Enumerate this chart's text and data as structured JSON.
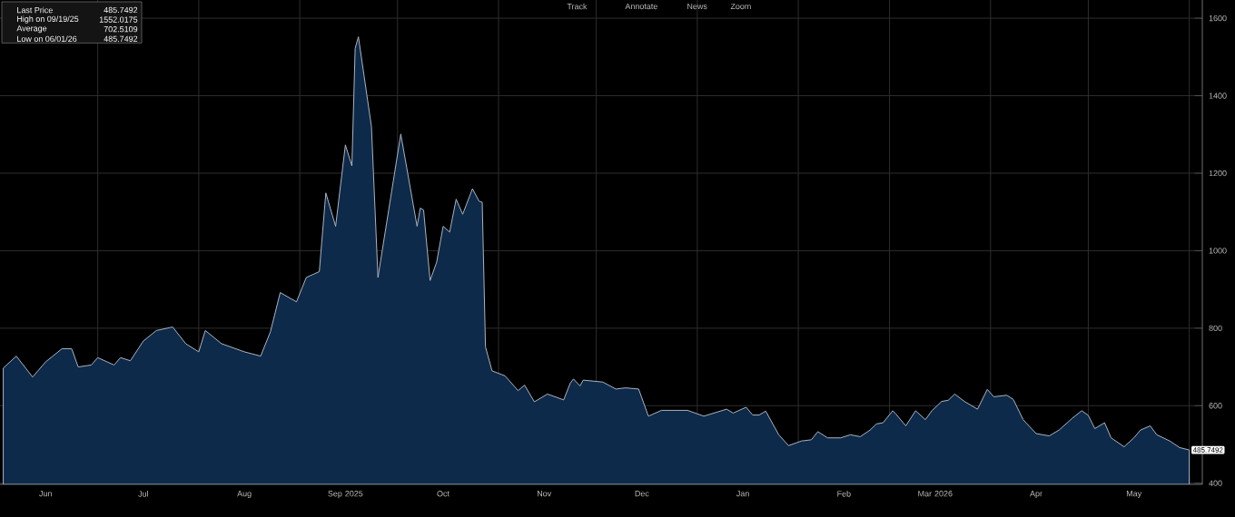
{
  "chart_data": {
    "type": "area",
    "x": [
      "2025-06-02",
      "2025-06-06",
      "2025-06-11",
      "2025-06-15",
      "2025-06-20",
      "2025-06-23",
      "2025-06-25",
      "2025-06-29",
      "2025-07-01",
      "2025-07-06",
      "2025-07-08",
      "2025-07-11",
      "2025-07-15",
      "2025-07-19",
      "2025-07-24",
      "2025-07-28",
      "2025-08-01",
      "2025-08-03",
      "2025-08-08",
      "2025-08-15",
      "2025-08-20",
      "2025-08-23",
      "2025-08-26",
      "2025-08-31",
      "2025-09-03",
      "2025-09-07",
      "2025-09-09",
      "2025-09-12",
      "2025-09-15",
      "2025-09-17",
      "2025-09-18",
      "2025-09-19",
      "2025-09-23",
      "2025-09-25",
      "2025-10-02",
      "2025-10-07",
      "2025-10-08",
      "2025-10-09",
      "2025-10-11",
      "2025-10-13",
      "2025-10-15",
      "2025-10-17",
      "2025-10-19",
      "2025-10-21",
      "2025-10-24",
      "2025-10-26",
      "2025-10-27",
      "2025-10-28",
      "2025-10-30",
      "2025-11-03",
      "2025-11-07",
      "2025-11-09",
      "2025-11-12",
      "2025-11-16",
      "2025-11-21",
      "2025-11-23",
      "2025-11-24",
      "2025-11-26",
      "2025-11-27",
      "2025-12-03",
      "2025-12-07",
      "2025-12-10",
      "2025-12-14",
      "2025-12-17",
      "2025-12-21",
      "2025-12-29",
      "2026-01-03",
      "2026-01-10",
      "2026-01-12",
      "2026-01-16",
      "2026-01-18",
      "2026-01-20",
      "2026-01-22",
      "2026-01-26",
      "2026-01-29",
      "2026-02-02",
      "2026-02-05",
      "2026-02-07",
      "2026-02-10",
      "2026-02-14",
      "2026-02-17",
      "2026-02-20",
      "2026-02-23",
      "2026-02-25",
      "2026-02-27",
      "2026-03-02",
      "2026-03-03",
      "2026-03-06",
      "2026-03-09",
      "2026-03-12",
      "2026-03-14",
      "2026-03-17",
      "2026-03-19",
      "2026-03-21",
      "2026-03-24",
      "2026-03-28",
      "2026-03-31",
      "2026-04-02",
      "2026-04-06",
      "2026-04-08",
      "2026-04-11",
      "2026-04-15",
      "2026-04-19",
      "2026-04-22",
      "2026-04-26",
      "2026-04-29",
      "2026-05-01",
      "2026-05-03",
      "2026-05-06",
      "2026-05-08",
      "2026-05-12",
      "2026-05-15",
      "2026-05-17",
      "2026-05-20",
      "2026-05-22",
      "2026-05-26",
      "2026-05-29",
      "2026-06-01"
    ],
    "series": [
      {
        "color": "#0e2a4a",
        "values": [
          697,
          728,
          674,
          713,
          747,
          747,
          700,
          705,
          724,
          705,
          724,
          716,
          767,
          794,
          803,
          760,
          739,
          794,
          760,
          739,
          728,
          791,
          892,
          868,
          931,
          946,
          1149,
          1063,
          1273,
          1219,
          1522,
          1552.0175,
          1320,
          931,
          1301,
          1063,
          1110,
          1105,
          923,
          970,
          1063,
          1048,
          1133,
          1094,
          1160,
          1128,
          1125,
          752,
          690,
          677,
          639,
          653,
          610,
          630,
          615,
          658,
          669,
          651,
          666,
          661,
          643,
          646,
          643,
          573,
          588,
          588,
          573,
          591,
          581,
          596,
          576,
          576,
          586,
          525,
          497,
          509,
          512,
          533,
          517,
          517,
          525,
          520,
          537,
          553,
          556,
          587,
          578,
          548,
          587,
          564,
          587,
          611,
          614,
          630,
          611,
          591,
          642,
          623,
          627,
          616,
          564,
          528,
          522,
          537,
          567,
          587,
          575,
          541,
          556,
          517,
          494,
          517,
          537,
          548,
          525,
          509,
          492,
          485.7492
        ]
      }
    ],
    "xlim": [
      "2025-06-01",
      "2026-06-05"
    ],
    "xticks": [
      {
        "value": "2025-07-01",
        "label": null
      },
      {
        "value": "2025-08-01",
        "label": null
      },
      {
        "value": "2025-09-01",
        "label": null
      },
      {
        "value": "2025-10-01",
        "label": null
      },
      {
        "value": "2025-11-01",
        "label": null
      },
      {
        "value": "2025-12-01",
        "label": null
      },
      {
        "value": "2026-01-01",
        "label": null
      },
      {
        "value": "2026-02-01",
        "label": null
      },
      {
        "value": "2026-03-01",
        "label": null
      },
      {
        "value": "2026-04-01",
        "label": null
      },
      {
        "value": "2026-05-01",
        "label": null
      },
      {
        "value": "2026-06-01",
        "label": null
      },
      {
        "value": "2025-06-15",
        "label": "Jun"
      },
      {
        "value": "2025-07-15",
        "label": "Jul"
      },
      {
        "value": "2025-08-15",
        "label": "Aug"
      },
      {
        "value": "2025-09-15",
        "label": "Sep 2025"
      },
      {
        "value": "2025-10-15",
        "label": "Oct"
      },
      {
        "value": "2025-11-15",
        "label": "Nov"
      },
      {
        "value": "2025-12-15",
        "label": "Dec"
      },
      {
        "value": "2026-01-15",
        "label": "Jan"
      },
      {
        "value": "2026-02-15",
        "label": "Feb"
      },
      {
        "value": "2026-03-15",
        "label": "Mar 2026"
      },
      {
        "value": "2026-04-15",
        "label": "Apr"
      },
      {
        "value": "2026-05-15",
        "label": "May"
      }
    ],
    "ylim": [
      397,
      1647
    ],
    "yticks": [
      400,
      600,
      800,
      1000,
      1200,
      1400,
      1600
    ],
    "grid": true,
    "annotations": [
      "Last Price",
      "485.7492",
      "High on 09/19/25",
      "1552.0175",
      "Average",
      "702.5109",
      "Low on 06/01/26",
      "485.7492",
      "Track",
      "Annotate",
      "News",
      "Zoom",
      {
        "text": "485.7492",
        "x": "2026-06-01",
        "y": 485.7492
      }
    ]
  }
}
